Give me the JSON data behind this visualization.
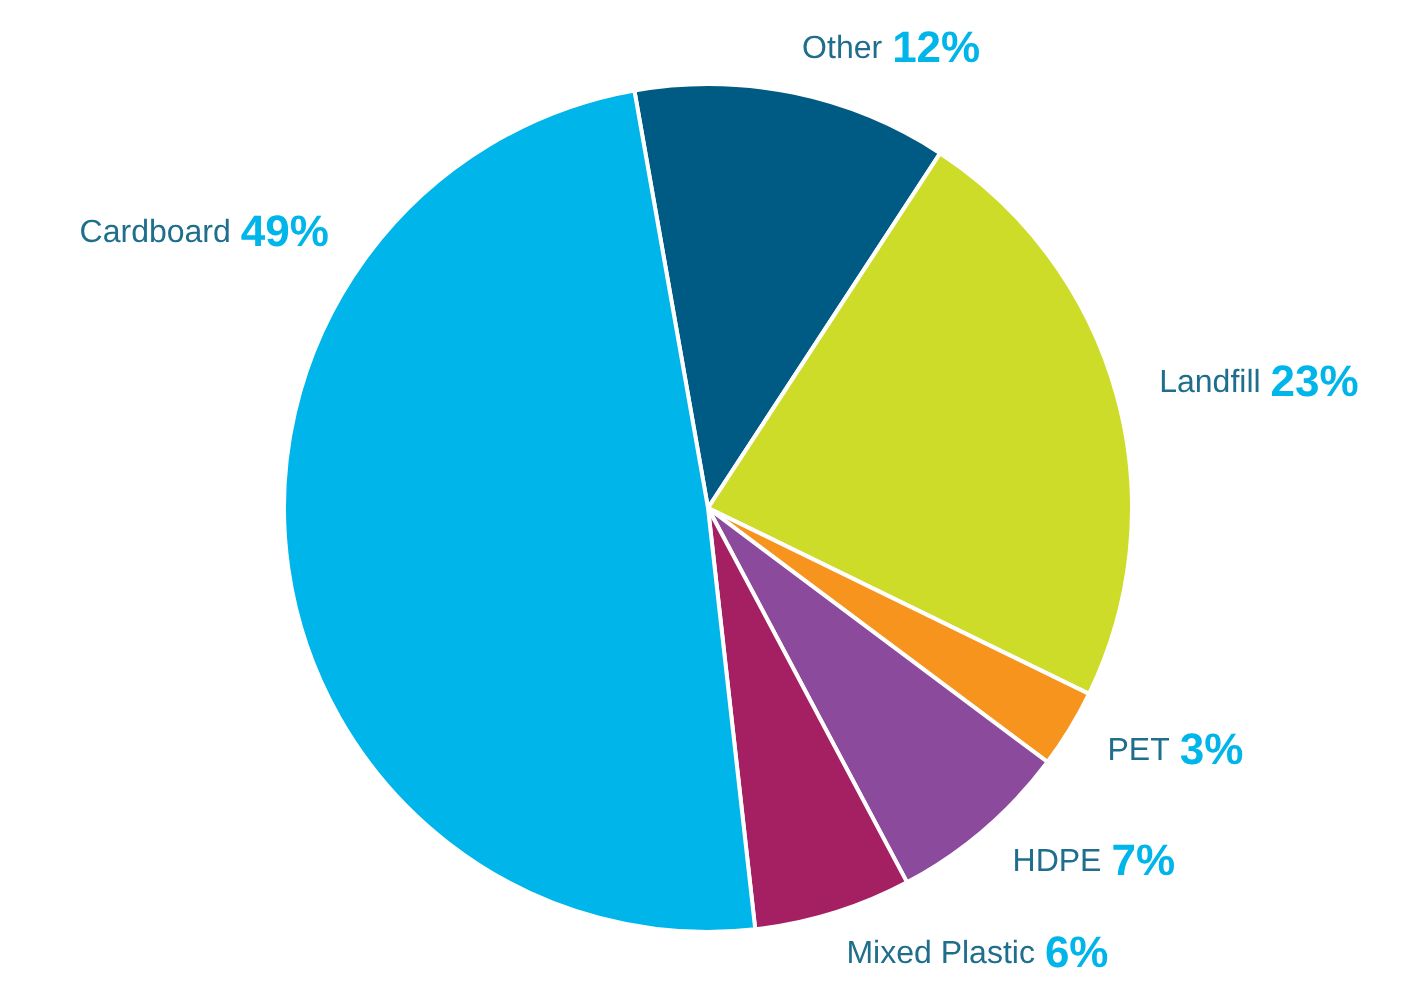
{
  "chart_data": {
    "type": "pie",
    "categories": [
      "Other",
      "Landfill",
      "PET",
      "HDPE",
      "Mixed Plastic",
      "Cardboard"
    ],
    "values": [
      12,
      23,
      3,
      7,
      6,
      49
    ],
    "colors": [
      "#005b84",
      "#cddc29",
      "#f7941d",
      "#8b4a9c",
      "#a51f63",
      "#00b5e9"
    ],
    "value_labels": [
      "12%",
      "23%",
      "3%",
      "7%",
      "6%",
      "49%"
    ]
  }
}
